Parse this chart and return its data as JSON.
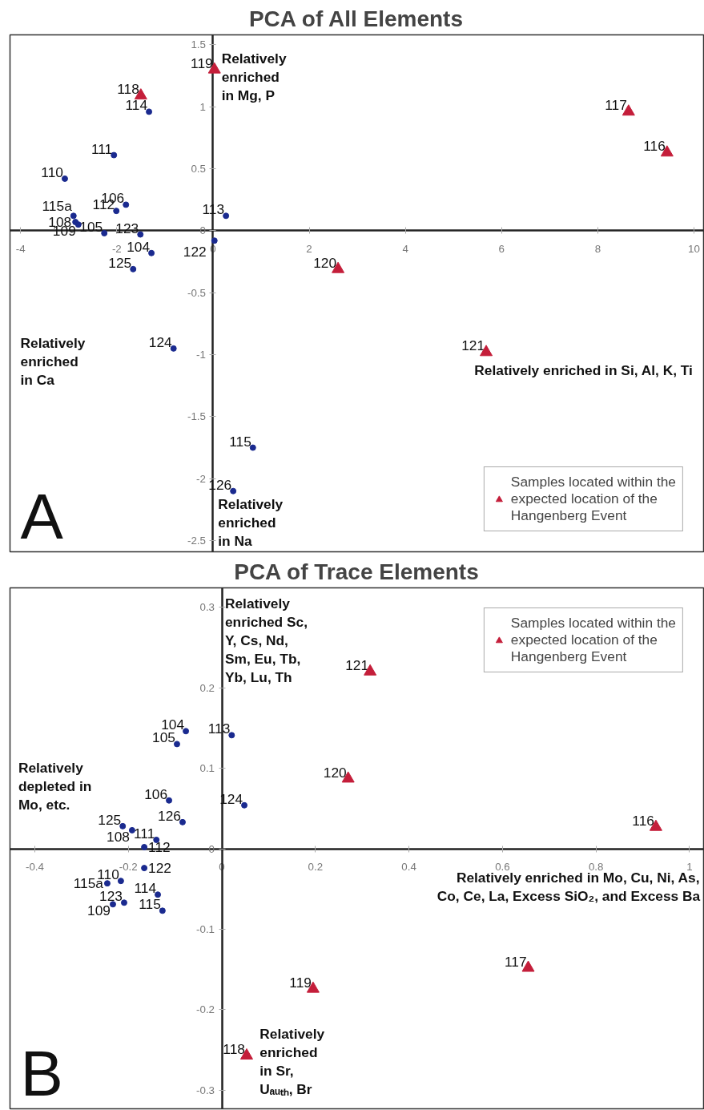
{
  "chart_data": [
    {
      "type": "scatter",
      "title": "PCA of All Elements",
      "xlim": [
        -4.22,
        10.2
      ],
      "ylim": [
        -2.59,
        1.58
      ],
      "xticks": [
        -4,
        -2,
        0,
        2,
        4,
        6,
        8,
        10
      ],
      "yticks": [
        -2.5,
        -2,
        -1.5,
        -1,
        -0.5,
        0,
        0.5,
        1,
        1.5
      ],
      "grid": false,
      "legend": "bottom right",
      "series": [
        {
          "name": "Samples located within the expected location of the Hangenberg Event",
          "color": "#c41e3a",
          "marker": "triangle",
          "x": [
            0.03,
            -1.5,
            8.64,
            9.44,
            2.6,
            5.68
          ],
          "values": [
            1.3,
            1.09,
            0.96,
            0.63,
            -0.31,
            -0.98
          ]
        },
        {
          "color": "#1a2a8f",
          "marker": "circle",
          "x": [
            -1.33,
            -2.06,
            -3.08,
            -1.81,
            -2.01,
            -2.9,
            -2.86,
            -2.8,
            -2.26,
            -1.51,
            0.27,
            0.03,
            -1.28,
            -1.66,
            -0.82,
            0.83,
            0.42
          ],
          "values": [
            0.96,
            0.61,
            0.42,
            0.21,
            0.16,
            0.12,
            0.07,
            0.05,
            -0.02,
            -0.03,
            0.12,
            -0.08,
            -0.18,
            -0.31,
            -0.95,
            -1.75,
            -2.1
          ]
        }
      ],
      "annotations": [
        "Relatively\nenriched\nin Mg, P",
        "Relatively enriched in Si, Al, K, Ti",
        "Relatively\nenriched\nin Ca",
        "Relatively\nenriched\nin Na",
        "A",
        {
          "text": "119",
          "x": 0.03,
          "y": 1.3
        },
        {
          "text": "118",
          "x": -1.5,
          "y": 1.09
        },
        {
          "text": "117",
          "x": 8.64,
          "y": 0.96
        },
        {
          "text": "116",
          "x": 9.44,
          "y": 0.63
        },
        {
          "text": "120",
          "x": 2.6,
          "y": -0.31
        },
        {
          "text": "121",
          "x": 5.68,
          "y": -0.98
        },
        {
          "text": "114",
          "x": -1.33,
          "y": 0.96
        },
        {
          "text": "111",
          "x": -2.06,
          "y": 0.61
        },
        {
          "text": "110",
          "x": -3.08,
          "y": 0.42
        },
        {
          "text": "106",
          "x": -1.81,
          "y": 0.21
        },
        {
          "text": "112",
          "x": -2.01,
          "y": 0.16
        },
        {
          "text": "115a",
          "x": -2.9,
          "y": 0.12
        },
        {
          "text": "108",
          "x": -2.86,
          "y": 0.07
        },
        {
          "text": "109",
          "x": -2.8,
          "y": 0.05
        },
        {
          "text": "105",
          "x": -2.26,
          "y": -0.02
        },
        {
          "text": "123",
          "x": -1.51,
          "y": -0.03
        },
        {
          "text": "113",
          "x": 0.27,
          "y": 0.12
        },
        {
          "text": "122",
          "x": 0.03,
          "y": -0.08
        },
        {
          "text": "104",
          "x": -1.28,
          "y": -0.18
        },
        {
          "text": "125",
          "x": -1.66,
          "y": -0.31
        },
        {
          "text": "124",
          "x": -0.82,
          "y": -0.95
        },
        {
          "text": "115",
          "x": 0.83,
          "y": -1.75
        },
        {
          "text": "126",
          "x": 0.42,
          "y": -2.1
        }
      ]
    },
    {
      "type": "scatter",
      "title": "PCA of Trace Elements",
      "xlim": [
        -0.453,
        1.03
      ],
      "ylim": [
        -0.323,
        0.324
      ],
      "xticks": [
        -0.4,
        -0.2,
        0,
        0.2,
        0.4,
        0.6,
        0.8,
        1
      ],
      "yticks": [
        -0.3,
        -0.2,
        -0.1,
        0,
        0.1,
        0.2,
        0.3
      ],
      "grid": false,
      "legend": "top right",
      "series": [
        {
          "name": "Samples located within the expected location of the Hangenberg Event",
          "color": "#c41e3a",
          "marker": "triangle",
          "x": [
            0.317,
            0.27,
            0.928,
            0.655,
            0.195,
            0.053
          ],
          "values": [
            0.22,
            0.087,
            0.027,
            -0.148,
            -0.174,
            -0.257
          ]
        },
        {
          "color": "#1a2a8f",
          "marker": "circle",
          "x": [
            -0.077,
            -0.096,
            0.021,
            -0.113,
            0.048,
            -0.212,
            -0.192,
            -0.084,
            -0.14,
            -0.166,
            -0.166,
            -0.216,
            -0.245,
            -0.137,
            -0.209,
            -0.233,
            -0.127
          ],
          "values": [
            0.146,
            0.13,
            0.141,
            0.06,
            0.054,
            0.028,
            0.023,
            0.033,
            0.011,
            0.002,
            -0.024,
            -0.04,
            -0.043,
            -0.057,
            -0.067,
            -0.069,
            -0.077
          ]
        }
      ],
      "annotations": [
        "Relatively\nenriched Sc,\nY, Cs, Nd,\nSm, Eu, Tb,\nYb, Lu, Th",
        "Relatively\ndepleted in\nMo, etc.",
        "Relatively enriched in Mo, Cu, Ni, As,\nCo, Ce, La, Excess SiO₂, and Excess Ba",
        "Relatively\nenriched\nin Sr,\nUₐᵤₜₕ, Br",
        "B",
        {
          "text": "121",
          "x": 0.317,
          "y": 0.22
        },
        {
          "text": "120",
          "x": 0.27,
          "y": 0.087
        },
        {
          "text": "116",
          "x": 0.928,
          "y": 0.027
        },
        {
          "text": "117",
          "x": 0.655,
          "y": -0.148
        },
        {
          "text": "119",
          "x": 0.195,
          "y": -0.174
        },
        {
          "text": "118",
          "x": 0.053,
          "y": -0.257
        },
        {
          "text": "104",
          "x": -0.077,
          "y": 0.146
        },
        {
          "text": "105",
          "x": -0.096,
          "y": 0.13
        },
        {
          "text": "113",
          "x": 0.021,
          "y": 0.141
        },
        {
          "text": "106",
          "x": -0.113,
          "y": 0.06
        },
        {
          "text": "124",
          "x": 0.048,
          "y": 0.054
        },
        {
          "text": "125",
          "x": -0.212,
          "y": 0.028
        },
        {
          "text": "108",
          "x": -0.192,
          "y": 0.023
        },
        {
          "text": "126",
          "x": -0.084,
          "y": 0.033
        },
        {
          "text": "111",
          "x": -0.14,
          "y": 0.011
        },
        {
          "text": "112",
          "x": -0.166,
          "y": 0.002
        },
        {
          "text": "122",
          "x": -0.166,
          "y": -0.024
        },
        {
          "text": "110",
          "x": -0.216,
          "y": -0.04
        },
        {
          "text": "115a",
          "x": -0.245,
          "y": -0.043
        },
        {
          "text": "114",
          "x": -0.137,
          "y": -0.057
        },
        {
          "text": "123",
          "x": -0.209,
          "y": -0.067
        },
        {
          "text": "109",
          "x": -0.233,
          "y": -0.069
        },
        {
          "text": "115",
          "x": -0.127,
          "y": -0.077
        }
      ]
    }
  ]
}
